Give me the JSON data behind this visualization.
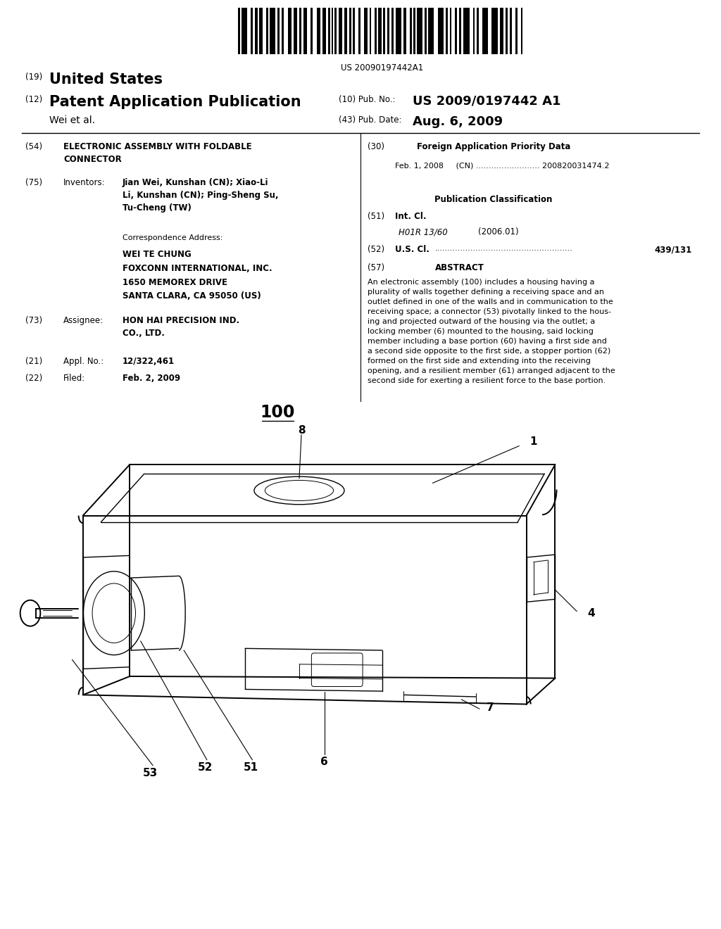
{
  "bg_color": "#ffffff",
  "barcode_text": "US 20090197442A1",
  "header_19": "(19)",
  "header_19_text": "United States",
  "header_12": "(12)",
  "header_12_text": "Patent Application Publication",
  "header_10_label": "(10) Pub. No.:",
  "header_10_value": "US 2009/0197442 A1",
  "header_author": "Wei et al.",
  "header_43_label": "(43) Pub. Date:",
  "header_43_value": "Aug. 6, 2009",
  "field_54_label": "(54)",
  "field_54_title": "ELECTRONIC ASSEMBLY WITH FOLDABLE\nCONNECTOR",
  "field_75_label": "(75)",
  "field_75_key": "Inventors:",
  "field_75_value": "Jian Wei, Kunshan (CN); Xiao-Li\nLi, Kunshan (CN); Ping-Sheng Su,\nTu-Cheng (TW)",
  "corr_label": "Correspondence Address:",
  "corr_line1": "WEI TE CHUNG",
  "corr_line2": "FOXCONN INTERNATIONAL, INC.",
  "corr_line3": "1650 MEMOREX DRIVE",
  "corr_line4": "SANTA CLARA, CA 95050 (US)",
  "field_73_label": "(73)",
  "field_73_key": "Assignee:",
  "field_73_value": "HON HAI PRECISION IND.\nCO., LTD.",
  "field_21_label": "(21)",
  "field_21_key": "Appl. No.:",
  "field_21_value": "12/322,461",
  "field_22_label": "(22)",
  "field_22_key": "Filed:",
  "field_22_value": "Feb. 2, 2009",
  "field_30_label": "(30)",
  "field_30_title": "Foreign Application Priority Data",
  "field_30_entry": "Feb. 1, 2008     (CN) ......................... 200820031474.2",
  "pub_class_title": "Publication Classification",
  "field_51_label": "(51)",
  "field_51_key": "Int. Cl.",
  "field_51_class": "H01R 13/60",
  "field_51_year": "(2006.01)",
  "field_52_label": "(52)",
  "field_52_key": "U.S. Cl.",
  "field_52_dots": "......................................................",
  "field_52_value": "439/131",
  "field_57_label": "(57)",
  "field_57_title": "ABSTRACT",
  "abstract_text": "An electronic assembly (100) includes a housing having a\nplurality of walls together defining a receiving space and an\noutlet defined in one of the walls and in communication to the\nreceiving space; a connector (53) pivotally linked to the hous-\ning and projected outward of the housing via the outlet; a\nlocking member (6) mounted to the housing, said locking\nmember including a base portion (60) having a first side and\na second side opposite to the first side, a stopper portion (62)\nformed on the first side and extending into the receiving\nopening, and a resilient member (61) arranged adjacent to the\nsecond side for exerting a resilient force to the base portion.",
  "fig_label": "100"
}
